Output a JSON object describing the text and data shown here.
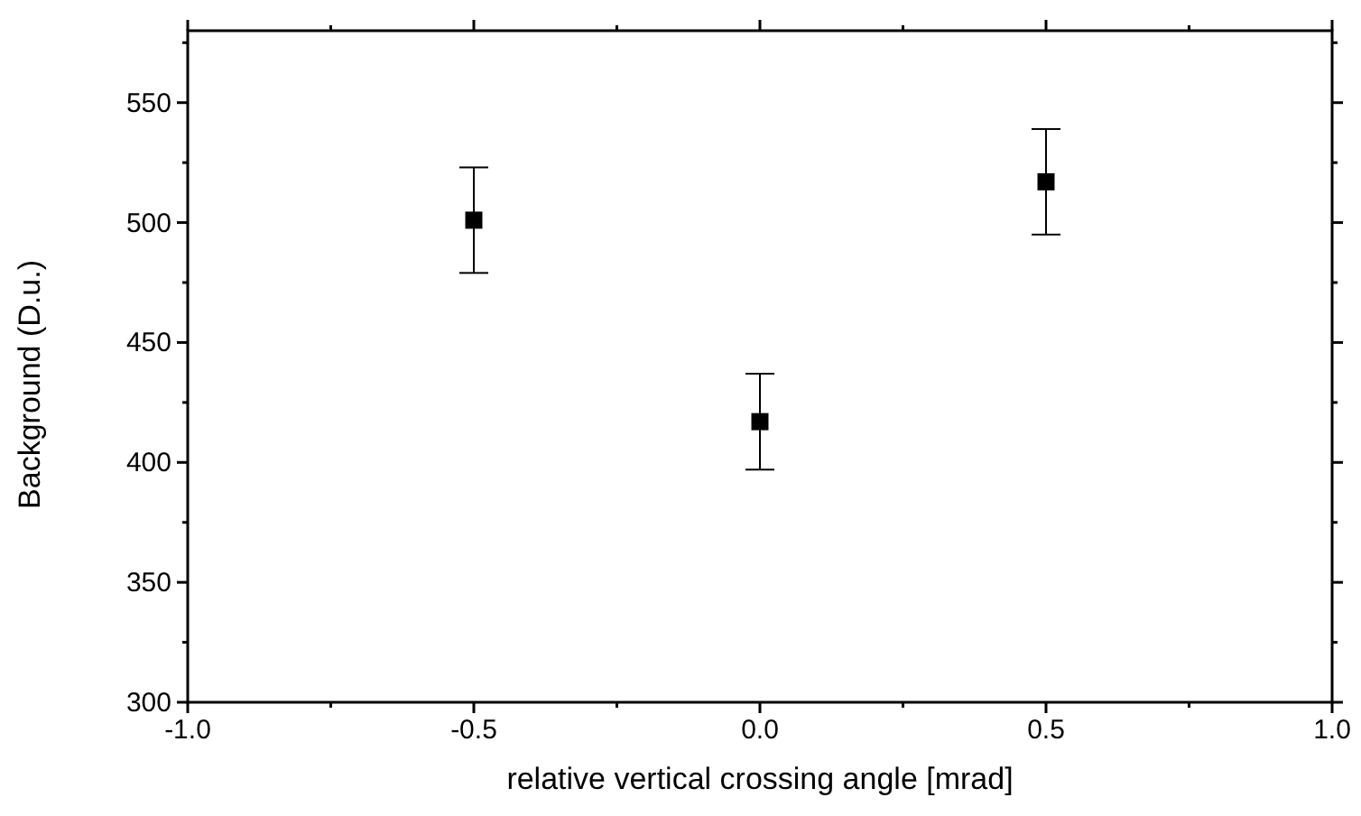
{
  "chart_data": {
    "type": "scatter",
    "xlabel": "relative vertical crossing angle [mrad]",
    "ylabel": "Background (D.u.)",
    "x": [
      -0.5,
      0,
      0.5
    ],
    "values": [
      501,
      417,
      517
    ],
    "errors": [
      22,
      20,
      22
    ],
    "color": "#000000",
    "marker": "square",
    "xlim": [
      -1,
      1
    ],
    "xticks": [
      {
        "value": -1,
        "label": "-1.0"
      },
      {
        "value": -0.5,
        "label": "-0.5"
      },
      {
        "value": 0,
        "label": "0.0"
      },
      {
        "value": 0.5,
        "label": "0.5"
      },
      {
        "value": 1,
        "label": "1.0"
      }
    ],
    "ylim": [
      300,
      580
    ],
    "yticks": [
      300,
      350,
      400,
      450,
      500,
      550
    ],
    "grid": false
  }
}
